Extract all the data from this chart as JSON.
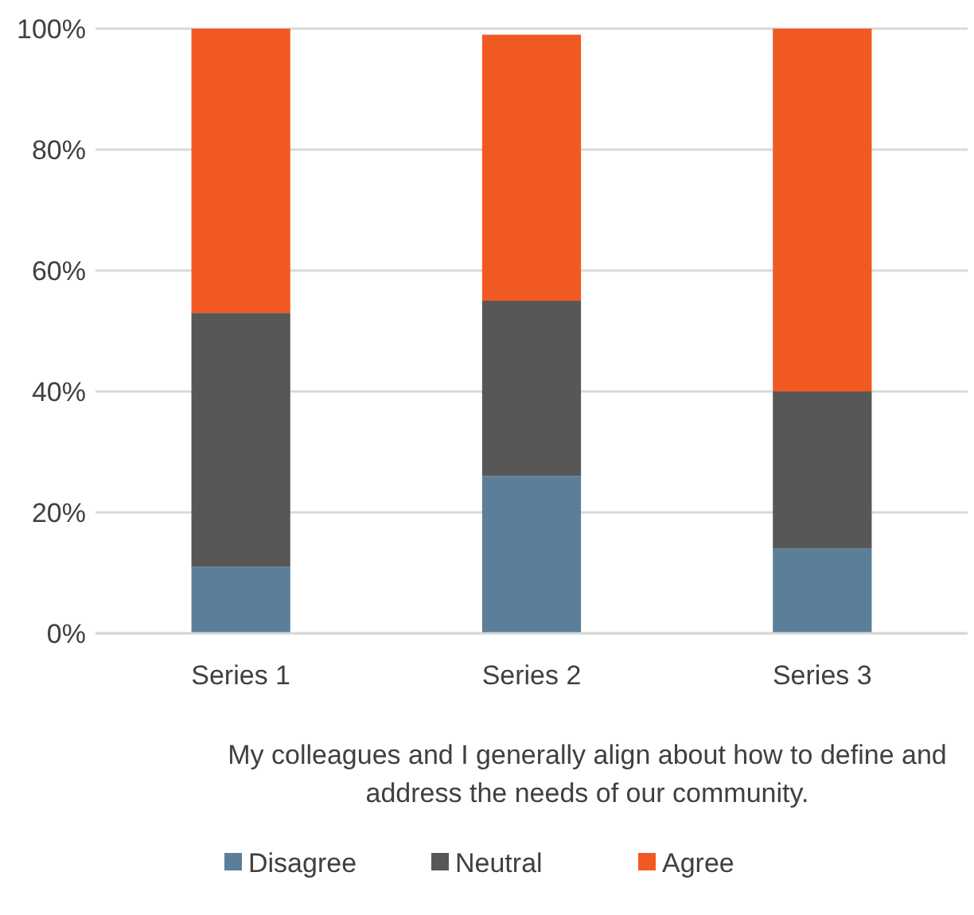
{
  "chart_data": {
    "type": "bar",
    "stacked": true,
    "categories": [
      "Series 1",
      "Series 2",
      "Series 3"
    ],
    "series": [
      {
        "name": "Disagree",
        "color": "#5b7f99",
        "values": [
          11,
          26,
          14
        ]
      },
      {
        "name": "Neutral",
        "color": "#575757",
        "values": [
          42,
          29,
          26
        ]
      },
      {
        "name": "Agree",
        "color": "#f05a22",
        "values": [
          47,
          44,
          60
        ]
      }
    ],
    "ylim": [
      0,
      100
    ],
    "yticks": [
      {
        "value": 0,
        "label": "0%"
      },
      {
        "value": 20,
        "label": "20%"
      },
      {
        "value": 40,
        "label": "40%"
      },
      {
        "value": 60,
        "label": "60%"
      },
      {
        "value": 80,
        "label": "80%"
      },
      {
        "value": 100,
        "label": "100%"
      }
    ],
    "grid": "y",
    "legend": "bottom",
    "xlabel": "My colleagues and I generally align about how to define and address the needs of our community."
  }
}
